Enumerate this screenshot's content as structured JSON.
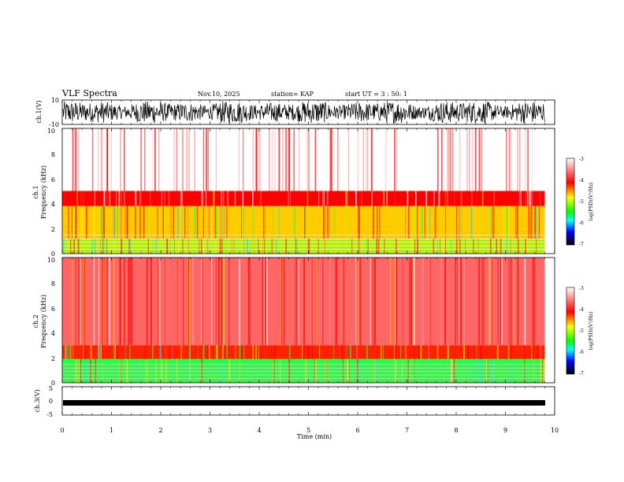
{
  "header": {
    "title": "VLF Spectra",
    "date": "Nov.10, 2025",
    "station": "station= KAP",
    "start": "start  UT  =   3  : 50: 1"
  },
  "colorbar": {
    "label": "log(PSD)(V²/Hz)",
    "ticks": [
      "-3",
      "-4",
      "-5",
      "-6",
      "-7"
    ],
    "colors": [
      "#ffffff",
      "#ff0000",
      "#ffff00",
      "#00ff00",
      "#00ffff",
      "#0000ff",
      "#000000"
    ]
  },
  "chart_data": [
    {
      "type": "line",
      "name": "ch1-waveform",
      "ylabel": "ch.1(V)",
      "ylim": [
        -10,
        10
      ],
      "ytick_labels": [
        "10",
        "-10"
      ],
      "xlim": [
        0,
        10
      ],
      "description": "dense noisy waveform, roughly -8 to 8 V"
    },
    {
      "type": "heatmap",
      "name": "ch1-spectrogram",
      "ylabel_channel": "ch.1",
      "ylabel": "Frequency (kHz)",
      "ylim": [
        0,
        10
      ],
      "ytick_labels": [
        "0",
        "2",
        "4",
        "6",
        "8",
        "10"
      ],
      "xlim": [
        0,
        9.8
      ],
      "bands": [
        {
          "from_khz": 0,
          "to_khz": 1.2,
          "level": -4.5
        },
        {
          "from_khz": 1.2,
          "to_khz": 3.8,
          "level": -4.6
        },
        {
          "from_khz": 3.8,
          "to_khz": 5,
          "level": -3.8
        },
        {
          "from_khz": 5,
          "to_khz": 10,
          "level": -3.3
        }
      ]
    },
    {
      "type": "heatmap",
      "name": "ch2-spectrogram",
      "ylabel_channel": "ch.2",
      "ylabel": "Frequency (kHz)",
      "ylim": [
        0,
        10
      ],
      "ytick_labels": [
        "0",
        "2",
        "4",
        "6",
        "8",
        "10"
      ],
      "xlim": [
        0,
        9.8
      ],
      "bands": [
        {
          "from_khz": 0,
          "to_khz": 1.9,
          "level": -5.4
        },
        {
          "from_khz": 1.9,
          "to_khz": 3,
          "level": -4.4
        },
        {
          "from_khz": 3,
          "to_khz": 10,
          "level": -3.8
        }
      ]
    },
    {
      "type": "line",
      "name": "ch3-waveform",
      "ylabel": "ch.3(V)",
      "ylim": [
        -5,
        5
      ],
      "ytick_labels": [
        "5",
        "0",
        "-5"
      ],
      "xlim": [
        0,
        10
      ],
      "xlabel": "Time (min)",
      "xtick_labels": [
        "0",
        "1",
        "2",
        "3",
        "4",
        "5",
        "6",
        "7",
        "8",
        "9",
        "10"
      ],
      "description": "flat thick band near -1.5 V"
    }
  ]
}
